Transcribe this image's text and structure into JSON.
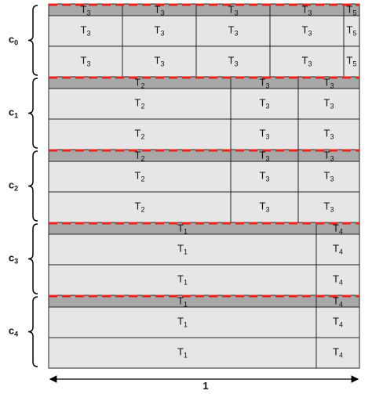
{
  "groups": [
    {
      "label": {
        "base": "c",
        "sub": "0"
      },
      "rows": [
        [
          {
            "base": "T",
            "sub": "3"
          },
          {
            "base": "T",
            "sub": "3"
          },
          {
            "base": "T",
            "sub": "3"
          },
          {
            "base": "T",
            "sub": "3"
          },
          {
            "base": "T",
            "sub": "5"
          }
        ],
        [
          {
            "base": "T",
            "sub": "3"
          },
          {
            "base": "T",
            "sub": "3"
          },
          {
            "base": "T",
            "sub": "3"
          },
          {
            "base": "T",
            "sub": "3"
          },
          {
            "base": "T",
            "sub": "5"
          }
        ],
        [
          {
            "base": "T",
            "sub": "3"
          },
          {
            "base": "T",
            "sub": "3"
          },
          {
            "base": "T",
            "sub": "3"
          },
          {
            "base": "T",
            "sub": "3"
          },
          {
            "base": "T",
            "sub": "5"
          }
        ]
      ]
    },
    {
      "label": {
        "base": "c",
        "sub": "1"
      },
      "rows": [
        [
          {
            "base": "T",
            "sub": "2"
          },
          {
            "base": "T",
            "sub": "3"
          },
          {
            "base": "T",
            "sub": "3"
          }
        ],
        [
          {
            "base": "T",
            "sub": "2"
          },
          {
            "base": "T",
            "sub": "3"
          },
          {
            "base": "T",
            "sub": "3"
          }
        ],
        [
          {
            "base": "T",
            "sub": "2"
          },
          {
            "base": "T",
            "sub": "3"
          },
          {
            "base": "T",
            "sub": "3"
          }
        ]
      ]
    },
    {
      "label": {
        "base": "c",
        "sub": "2"
      },
      "rows": [
        [
          {
            "base": "T",
            "sub": "2"
          },
          {
            "base": "T",
            "sub": "3"
          },
          {
            "base": "T",
            "sub": "3"
          }
        ],
        [
          {
            "base": "T",
            "sub": "2"
          },
          {
            "base": "T",
            "sub": "3"
          },
          {
            "base": "T",
            "sub": "3"
          }
        ],
        [
          {
            "base": "T",
            "sub": "2"
          },
          {
            "base": "T",
            "sub": "3"
          },
          {
            "base": "T",
            "sub": "3"
          }
        ]
      ]
    },
    {
      "label": {
        "base": "c",
        "sub": "3"
      },
      "rows": [
        [
          {
            "base": "T",
            "sub": "1"
          },
          {
            "base": "T",
            "sub": "4"
          }
        ],
        [
          {
            "base": "T",
            "sub": "1"
          },
          {
            "base": "T",
            "sub": "4"
          }
        ],
        [
          {
            "base": "T",
            "sub": "1"
          },
          {
            "base": "T",
            "sub": "4"
          }
        ]
      ]
    },
    {
      "label": {
        "base": "c",
        "sub": "4"
      },
      "rows": [
        [
          {
            "base": "T",
            "sub": "1"
          },
          {
            "base": "T",
            "sub": "4"
          }
        ],
        [
          {
            "base": "T",
            "sub": "1"
          },
          {
            "base": "T",
            "sub": "4"
          }
        ],
        [
          {
            "base": "T",
            "sub": "1"
          },
          {
            "base": "T",
            "sub": "4"
          }
        ]
      ]
    }
  ],
  "width_label": "1"
}
